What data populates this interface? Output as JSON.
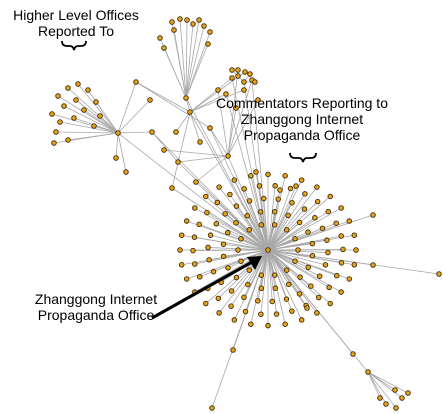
{
  "annotations": {
    "higher_offices": [
      "Higher Level Offices",
      "Reported To"
    ],
    "commentators": [
      "Commentators Reporting to",
      "Zhanggong Internet",
      "Propaganda Office"
    ],
    "office": [
      "Zhanggong Internet",
      "Propaganda Office"
    ]
  },
  "colors": {
    "node_fill": "#e8a31c",
    "node_stroke": "#3a2a08",
    "edge": "#a8a8a8",
    "arrow": "#000000"
  }
}
